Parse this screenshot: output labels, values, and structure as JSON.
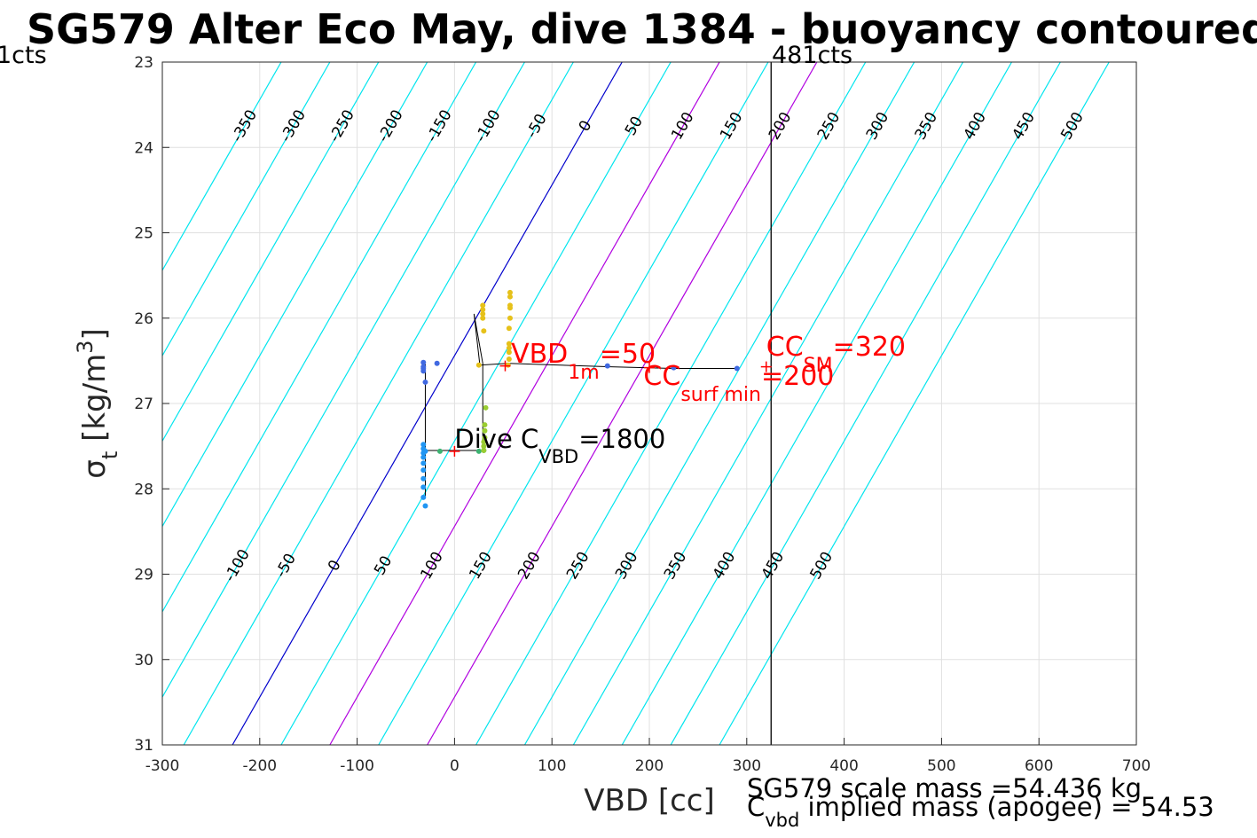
{
  "chart_data": {
    "type": "scatter",
    "title": "SG579 Alter Eco May, dive 1384 - buoyancy contoured",
    "xlabel": "VBD [cc]",
    "ylabel_symbol": "σ",
    "ylabel_sub": "t",
    "ylabel_unit": " [kg/m",
    "ylabel_sup": "3",
    "ylabel_close": "]",
    "xlim": [
      -300,
      700
    ],
    "ylim": [
      23,
      31
    ],
    "y_reversed": true,
    "grid": true,
    "xticks": [
      "-300",
      "-200",
      "-100",
      "0",
      "100",
      "200",
      "300",
      "400",
      "500",
      "600",
      "700"
    ],
    "yticks": [
      "23",
      "24",
      "25",
      "26",
      "27",
      "28",
      "29",
      "30",
      "31"
    ],
    "vline": {
      "x": 325,
      "label": "481cts",
      "color": "#000000"
    },
    "left_edge_label": "1cts",
    "contour_slope_cc_per_sigma": 50,
    "contours": [
      {
        "level": -350,
        "top_label": "-350",
        "bottom_label": ""
      },
      {
        "level": -300,
        "top_label": "-300",
        "bottom_label": ""
      },
      {
        "level": -250,
        "top_label": "-250",
        "bottom_label": ""
      },
      {
        "level": -200,
        "top_label": "-200",
        "bottom_label": ""
      },
      {
        "level": -150,
        "top_label": "-150",
        "bottom_label": ""
      },
      {
        "level": -100,
        "top_label": "-100",
        "bottom_label": "-100"
      },
      {
        "level": -50,
        "top_label": "-50",
        "bottom_label": "-50"
      },
      {
        "level": 0,
        "top_label": "0",
        "bottom_label": "0"
      },
      {
        "level": 50,
        "top_label": "50",
        "bottom_label": "50"
      },
      {
        "level": 100,
        "top_label": "100",
        "bottom_label": "100"
      },
      {
        "level": 150,
        "top_label": "150",
        "bottom_label": "150"
      },
      {
        "level": 200,
        "top_label": "200",
        "bottom_label": "200"
      },
      {
        "level": 250,
        "top_label": "250",
        "bottom_label": "250"
      },
      {
        "level": 300,
        "top_label": "300",
        "bottom_label": "300"
      },
      {
        "level": 350,
        "top_label": "350",
        "bottom_label": "350"
      },
      {
        "level": 400,
        "top_label": "400",
        "bottom_label": "400"
      },
      {
        "level": 450,
        "top_label": "450",
        "bottom_label": "450"
      },
      {
        "level": 500,
        "top_label": "500",
        "bottom_label": "500"
      }
    ],
    "highlight_contours": [
      {
        "level": 0,
        "color": "#0000cc"
      },
      {
        "level": 100,
        "color": "#b000e0"
      },
      {
        "level": 200,
        "color": "#b000e0"
      }
    ],
    "contour_color": "#00e5ee",
    "track": [
      [
        -30,
        26.54
      ],
      [
        -30,
        27.52
      ],
      [
        -30,
        28.1
      ],
      [
        -30,
        27.55
      ],
      [
        0,
        27.55
      ],
      [
        29,
        27.55
      ],
      [
        29,
        26.53
      ],
      [
        20,
        25.95
      ],
      [
        26,
        26.55
      ],
      [
        55,
        26.53
      ],
      [
        160,
        26.57
      ],
      [
        225,
        26.59
      ],
      [
        290,
        26.59
      ]
    ],
    "points": [
      {
        "color": "#4169e1",
        "xy": [
          [
            -32,
            26.52
          ],
          [
            -32,
            26.57
          ],
          [
            -32,
            26.62
          ],
          [
            -30,
            26.75
          ],
          [
            -18,
            26.53
          ],
          [
            157,
            26.56
          ],
          [
            225,
            26.58
          ],
          [
            290,
            26.59
          ],
          [
            -32,
            26.59
          ]
        ]
      },
      {
        "color": "#2196f3",
        "xy": [
          [
            -32,
            27.48
          ],
          [
            -32,
            27.53
          ],
          [
            -32,
            27.58
          ],
          [
            -32,
            27.63
          ],
          [
            -32,
            27.7
          ],
          [
            -32,
            27.78
          ],
          [
            -32,
            27.88
          ],
          [
            -32,
            27.98
          ],
          [
            -32,
            28.1
          ],
          [
            -30,
            28.2
          ],
          [
            -30,
            27.56
          ]
        ]
      },
      {
        "color": "#3cb371",
        "xy": [
          [
            -15,
            27.56
          ],
          [
            25,
            27.56
          ],
          [
            30,
            27.55
          ]
        ]
      },
      {
        "color": "#9acd32",
        "xy": [
          [
            30,
            27.55
          ],
          [
            30,
            27.5
          ],
          [
            30,
            27.45
          ],
          [
            31,
            27.4
          ],
          [
            31,
            27.32
          ],
          [
            31,
            27.25
          ],
          [
            32,
            27.05
          ]
        ]
      },
      {
        "color": "#e6c11a",
        "xy": [
          [
            29,
            25.85
          ],
          [
            29,
            25.9
          ],
          [
            29,
            25.95
          ],
          [
            29,
            26.0
          ],
          [
            30,
            26.15
          ],
          [
            57,
            25.7
          ],
          [
            57,
            25.75
          ],
          [
            57,
            25.85
          ],
          [
            57,
            25.88
          ],
          [
            57,
            26.0
          ],
          [
            56,
            26.12
          ],
          [
            56,
            26.3
          ],
          [
            56,
            26.35
          ],
          [
            56,
            26.4
          ],
          [
            56,
            26.48
          ],
          [
            55,
            26.55
          ],
          [
            25,
            26.55
          ]
        ]
      }
    ],
    "markers": [
      {
        "x": 52,
        "y": 26.56,
        "symbol": "+",
        "color": "#ff0000"
      },
      {
        "x": 200,
        "y": 26.58,
        "symbol": "+",
        "color": "#ff0000"
      },
      {
        "x": 320,
        "y": 26.57,
        "symbol": "+",
        "color": "#ff0000"
      },
      {
        "x": 0,
        "y": 27.56,
        "symbol": "+",
        "color": "#ff0000"
      }
    ],
    "annotations": [
      {
        "id": "vbd1m",
        "x": 58,
        "y": 26.52,
        "color": "#ff0000",
        "size": 30,
        "main": "VBD",
        "sub": "1m",
        "rest": "=50"
      },
      {
        "id": "ccsurf",
        "x": 194,
        "y": 26.78,
        "color": "#ff0000",
        "size": 30,
        "main": "CC",
        "sub": "surf min",
        "rest": "=200"
      },
      {
        "id": "ccsm",
        "x": 320,
        "y": 26.44,
        "color": "#ff0000",
        "size": 30,
        "main": "CC",
        "sub": "SM",
        "rest": "=320"
      },
      {
        "id": "divec",
        "x": 0,
        "y": 27.52,
        "color": "#000000",
        "size": 29,
        "main": "Dive C",
        "sub": "VBD",
        "rest": "=1800"
      }
    ]
  },
  "footer": {
    "scale_mass": "SG579 scale mass =54.436 kg",
    "implied_main": "C",
    "implied_sub": "vbd",
    "implied_rest": " implied mass (apogee) = 54.53"
  }
}
